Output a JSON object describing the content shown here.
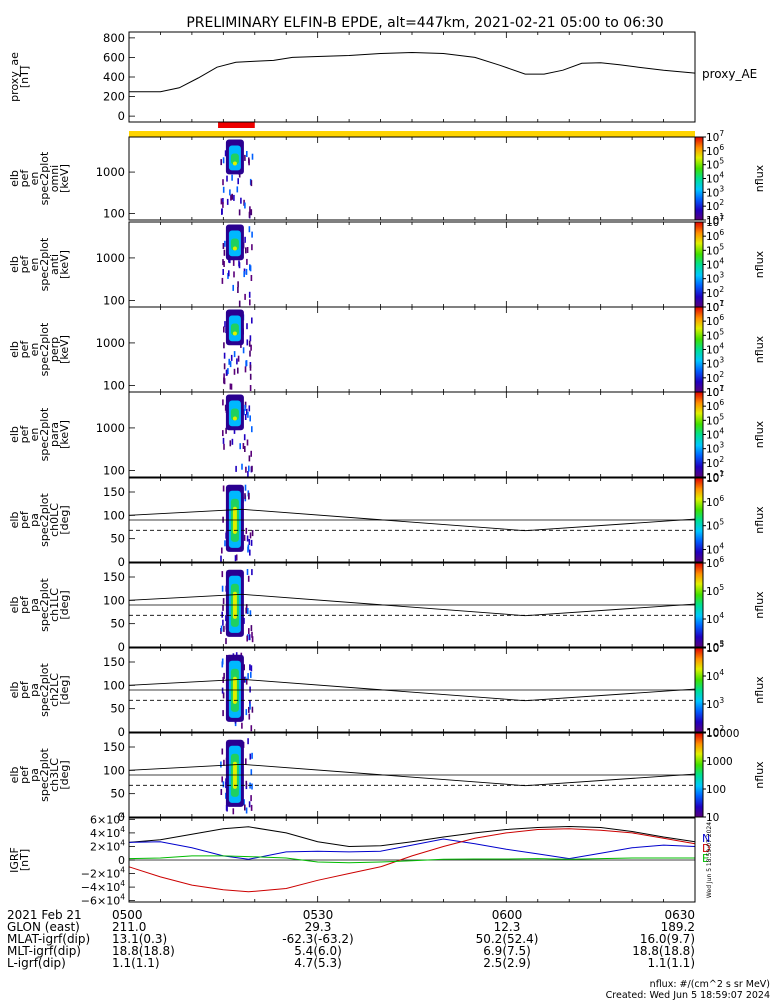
{
  "title": "PRELIMINARY ELFIN-B EPDE, alt=447km, 2021-02-21 05:00 to 06:30",
  "time_axis": {
    "start": "05:00",
    "end": "06:30",
    "ticks": [
      {
        "time": "05:00",
        "label": "0500"
      },
      {
        "time": "05:30",
        "label": "0530"
      },
      {
        "time": "06:00",
        "label": "0600"
      },
      {
        "time": "06:30",
        "label": "0630"
      }
    ]
  },
  "chart_data": [
    {
      "type": "line",
      "panel": "proxy_ae",
      "ylabel_lines": [
        "proxy_ae",
        "[nT]"
      ],
      "legend": "proxy_AE",
      "ylim": [
        -60,
        860
      ],
      "yticks": [
        0,
        200,
        400,
        600,
        800
      ],
      "ytick_labels": [
        "0",
        "200",
        "400",
        "600",
        "800"
      ],
      "x": [
        "05:00",
        "05:05",
        "05:08",
        "05:11",
        "05:14",
        "05:17",
        "05:20",
        "05:23",
        "05:26",
        "05:30",
        "05:35",
        "05:40",
        "05:45",
        "05:50",
        "05:55",
        "05:59",
        "06:03",
        "06:06",
        "06:09",
        "06:12",
        "06:15",
        "06:18",
        "06:21",
        "06:25",
        "06:30"
      ],
      "y": [
        250,
        250,
        290,
        390,
        500,
        550,
        560,
        570,
        600,
        610,
        620,
        640,
        650,
        640,
        600,
        520,
        430,
        430,
        470,
        540,
        545,
        525,
        500,
        470,
        440
      ]
    },
    {
      "type": "heatmap",
      "panel": "spec_omni",
      "ylabel_lines": [
        "elb",
        "pef",
        "en",
        "spec2plot",
        "omni",
        "[keV]"
      ],
      "y_scale": "log",
      "ylim": [
        70,
        7000
      ],
      "yticks": [
        100,
        1000
      ],
      "ytick_labels": [
        "100",
        "1000"
      ],
      "active_interval": [
        "05:14",
        "05:20"
      ],
      "colorbar": {
        "label": "nflux",
        "scale": "log",
        "range": [
          10,
          10000000
        ],
        "ticks": [
          {
            "base": "10",
            "exp": "1"
          },
          {
            "base": "10",
            "exp": "2"
          },
          {
            "base": "10",
            "exp": "3"
          },
          {
            "base": "10",
            "exp": "4"
          },
          {
            "base": "10",
            "exp": "5"
          },
          {
            "base": "10",
            "exp": "6"
          },
          {
            "base": "10",
            "exp": "7"
          }
        ]
      }
    },
    {
      "type": "heatmap",
      "panel": "spec_anti",
      "ylabel_lines": [
        "elb",
        "pef",
        "en",
        "spec2plot",
        "anti",
        "[keV]"
      ],
      "y_scale": "log",
      "ylim": [
        70,
        7000
      ],
      "yticks": [
        100,
        1000
      ],
      "ytick_labels": [
        "100",
        "1000"
      ],
      "active_interval": [
        "05:14",
        "05:20"
      ],
      "colorbar": {
        "label": "nflux",
        "scale": "log",
        "range": [
          10,
          10000000
        ],
        "ticks": [
          {
            "base": "10",
            "exp": "1"
          },
          {
            "base": "10",
            "exp": "2"
          },
          {
            "base": "10",
            "exp": "3"
          },
          {
            "base": "10",
            "exp": "4"
          },
          {
            "base": "10",
            "exp": "5"
          },
          {
            "base": "10",
            "exp": "6"
          },
          {
            "base": "10",
            "exp": "7"
          }
        ]
      }
    },
    {
      "type": "heatmap",
      "panel": "spec_perp",
      "ylabel_lines": [
        "elb",
        "pef",
        "en",
        "spec2plot",
        "perp",
        "[keV]"
      ],
      "y_scale": "log",
      "ylim": [
        70,
        7000
      ],
      "yticks": [
        100,
        1000
      ],
      "ytick_labels": [
        "100",
        "1000"
      ],
      "active_interval": [
        "05:14",
        "05:20"
      ],
      "colorbar": {
        "label": "nflux",
        "scale": "log",
        "range": [
          10,
          10000000
        ],
        "ticks": [
          {
            "base": "10",
            "exp": "1"
          },
          {
            "base": "10",
            "exp": "2"
          },
          {
            "base": "10",
            "exp": "3"
          },
          {
            "base": "10",
            "exp": "4"
          },
          {
            "base": "10",
            "exp": "5"
          },
          {
            "base": "10",
            "exp": "6"
          },
          {
            "base": "10",
            "exp": "7"
          }
        ]
      }
    },
    {
      "type": "heatmap",
      "panel": "spec_para",
      "ylabel_lines": [
        "elb",
        "pef",
        "en",
        "spec2plot",
        "para",
        "[keV]"
      ],
      "y_scale": "log",
      "ylim": [
        70,
        7000
      ],
      "yticks": [
        100,
        1000
      ],
      "ytick_labels": [
        "100",
        "1000"
      ],
      "active_interval": [
        "05:14",
        "05:20"
      ],
      "colorbar": {
        "label": "nflux",
        "scale": "log",
        "range": [
          10,
          10000000
        ],
        "ticks": [
          {
            "base": "10",
            "exp": "1"
          },
          {
            "base": "10",
            "exp": "2"
          },
          {
            "base": "10",
            "exp": "3"
          },
          {
            "base": "10",
            "exp": "4"
          },
          {
            "base": "10",
            "exp": "5"
          },
          {
            "base": "10",
            "exp": "6"
          },
          {
            "base": "10",
            "exp": "7"
          }
        ]
      }
    },
    {
      "type": "heatmap",
      "panel": "pa_ch0",
      "ylabel_lines": [
        "elb",
        "pef",
        "pa",
        "spec2plot",
        "ch0LC",
        "[deg]"
      ],
      "ylim": [
        0,
        180
      ],
      "yticks": [
        0,
        50,
        100,
        150
      ],
      "ytick_labels": [
        "0",
        "50",
        "100",
        "150"
      ],
      "active_interval": [
        "05:14",
        "05:20"
      ],
      "reference_line": 90,
      "loss_cone": {
        "x": [
          "05:00",
          "05:18",
          "06:03",
          "06:30"
        ],
        "lc": [
          100,
          113,
          67,
          92
        ],
        "alc": [
          68,
          68,
          68,
          68
        ]
      },
      "colorbar": {
        "label": "nflux",
        "scale": "log",
        "range": [
          3000,
          10000000
        ],
        "ticks": [
          {
            "base": "10",
            "exp": "4"
          },
          {
            "base": "10",
            "exp": "5"
          },
          {
            "base": "10",
            "exp": "6"
          },
          {
            "base": "10",
            "exp": "7"
          }
        ]
      }
    },
    {
      "type": "heatmap",
      "panel": "pa_ch1",
      "ylabel_lines": [
        "elb",
        "pef",
        "pa",
        "spec2plot",
        "ch1LC",
        "[deg]"
      ],
      "ylim": [
        0,
        180
      ],
      "yticks": [
        0,
        50,
        100,
        150
      ],
      "ytick_labels": [
        "0",
        "50",
        "100",
        "150"
      ],
      "active_interval": [
        "05:14",
        "05:20"
      ],
      "reference_line": 90,
      "loss_cone": {
        "x": [
          "05:00",
          "05:18",
          "06:03",
          "06:30"
        ],
        "lc": [
          100,
          113,
          67,
          92
        ],
        "alc": [
          68,
          68,
          68,
          68
        ]
      },
      "colorbar": {
        "label": "nflux",
        "scale": "log",
        "range": [
          1000,
          1000000
        ],
        "ticks": [
          {
            "base": "10",
            "exp": "3"
          },
          {
            "base": "10",
            "exp": "4"
          },
          {
            "base": "10",
            "exp": "5"
          },
          {
            "base": "10",
            "exp": "6"
          }
        ]
      }
    },
    {
      "type": "heatmap",
      "panel": "pa_ch2",
      "ylabel_lines": [
        "elb",
        "pef",
        "pa",
        "spec2plot",
        "ch2LC",
        "[deg]"
      ],
      "ylim": [
        0,
        180
      ],
      "yticks": [
        0,
        50,
        100,
        150
      ],
      "ytick_labels": [
        "0",
        "50",
        "100",
        "150"
      ],
      "active_interval": [
        "05:14",
        "05:20"
      ],
      "reference_line": 90,
      "loss_cone": {
        "x": [
          "05:00",
          "05:18",
          "06:03",
          "06:30"
        ],
        "lc": [
          100,
          113,
          67,
          92
        ],
        "alc": [
          68,
          68,
          68,
          68
        ]
      },
      "colorbar": {
        "label": "nflux",
        "scale": "log",
        "range": [
          100,
          100000
        ],
        "ticks": [
          {
            "base": "10",
            "exp": "2"
          },
          {
            "base": "10",
            "exp": "3"
          },
          {
            "base": "10",
            "exp": "4"
          },
          {
            "base": "10",
            "exp": "5"
          }
        ]
      }
    },
    {
      "type": "heatmap",
      "panel": "pa_ch3",
      "ylabel_lines": [
        "elb",
        "pef",
        "pa",
        "spec2plot",
        "ch3LC",
        "[deg]"
      ],
      "ylim": [
        0,
        180
      ],
      "yticks": [
        0,
        50,
        100,
        150
      ],
      "ytick_labels": [
        "0",
        "50",
        "100",
        "150"
      ],
      "active_interval": [
        "05:14",
        "05:20"
      ],
      "reference_line": 90,
      "loss_cone": {
        "x": [
          "05:00",
          "05:18",
          "06:03",
          "06:30"
        ],
        "lc": [
          100,
          113,
          67,
          92
        ],
        "alc": [
          68,
          68,
          68,
          68
        ]
      },
      "colorbar": {
        "label": "nflux",
        "scale": "log",
        "range": [
          10,
          10000
        ],
        "ticks": [
          {
            "text": "10"
          },
          {
            "text": "100"
          },
          {
            "text": "1000"
          },
          {
            "text": "10000"
          }
        ]
      }
    },
    {
      "type": "line",
      "panel": "igrf",
      "ylabel_lines": [
        "IGRF",
        "[nT]"
      ],
      "ylim": [
        -62000,
        62000
      ],
      "yticks": [
        {
          "value": 60000,
          "label": "6×10",
          "exp": "4"
        },
        {
          "value": 40000,
          "label": "4×10",
          "exp": "4"
        },
        {
          "value": 20000,
          "label": "2×10",
          "exp": "4"
        },
        {
          "value": 0,
          "label": "0",
          "exp": ""
        },
        {
          "value": -20000,
          "label": "−2×10",
          "exp": "4"
        },
        {
          "value": -40000,
          "label": "−4×10",
          "exp": "4"
        },
        {
          "value": -60000,
          "label": "−6×10",
          "exp": "4"
        }
      ],
      "reference_line": 0,
      "legend": [
        {
          "name": "N",
          "color": "#0000cc"
        },
        {
          "name": "D",
          "color": "#cc0000"
        },
        {
          "name": "E",
          "color": "#00bb00"
        }
      ],
      "side_note": "Wed Jun  5 18:59:07 2024",
      "x": [
        "05:00",
        "05:05",
        "05:10",
        "05:15",
        "05:19",
        "05:25",
        "05:30",
        "05:35",
        "05:40",
        "05:45",
        "05:50",
        "05:55",
        "06:00",
        "06:05",
        "06:10",
        "06:15",
        "06:20",
        "06:25",
        "06:30"
      ],
      "series": [
        {
          "name": "total",
          "color": "#000000",
          "values": [
            26000,
            30000,
            38000,
            46000,
            49000,
            40000,
            27000,
            20000,
            21000,
            27000,
            34000,
            40000,
            45000,
            48000,
            49500,
            48000,
            42000,
            34000,
            27000
          ]
        },
        {
          "name": "N",
          "color": "#0000cc",
          "values": [
            26000,
            27000,
            18000,
            6000,
            1000,
            12000,
            13000,
            12000,
            13000,
            22000,
            31000,
            24000,
            16000,
            9000,
            2000,
            10000,
            18000,
            22000,
            20000
          ]
        },
        {
          "name": "D",
          "color": "#cc0000",
          "values": [
            -10000,
            -25000,
            -37000,
            -44000,
            -47000,
            -42000,
            -30000,
            -20000,
            -10000,
            6000,
            20000,
            32000,
            40000,
            45000,
            46000,
            44000,
            40000,
            32000,
            24000
          ]
        },
        {
          "name": "E",
          "color": "#00bb00",
          "values": [
            2000,
            3000,
            6000,
            6000,
            5000,
            3000,
            -3000,
            -4000,
            -3000,
            -1000,
            1000,
            1500,
            1500,
            2000,
            1000,
            2000,
            3000,
            3000,
            3000
          ]
        }
      ]
    }
  ],
  "ephemeris": {
    "rows": [
      {
        "label": "2021 Feb 21",
        "values": [
          "0500",
          "0530",
          "0600",
          "0630"
        ]
      },
      {
        "label": "GLON (east)",
        "values": [
          "211.0",
          "29.3",
          "12.3",
          "189.2"
        ]
      },
      {
        "label": "MLAT-igrf(dip)",
        "values": [
          "13.1(0.3)",
          "-62.3(-63.2)",
          "50.2(52.4)",
          "16.0(9.7)"
        ]
      },
      {
        "label": "MLT-igrf(dip)",
        "values": [
          "18.8(18.8)",
          "5.4(6.0)",
          "6.9(7.5)",
          "18.8(18.8)"
        ]
      },
      {
        "label": "L-igrf(dip)",
        "values": [
          "1.1(1.1)",
          "4.7(5.3)",
          "2.5(2.9)",
          "1.1(1.1)"
        ]
      }
    ]
  },
  "footer": {
    "units": "nflux: #/(cm^2 s sr MeV)",
    "created": "Created: Wed Jun  5 18:59:07 2024"
  },
  "colors": {
    "science_zone_bar": "#ffd400",
    "interval_bar": "#ee0000",
    "axes": "#000000"
  }
}
